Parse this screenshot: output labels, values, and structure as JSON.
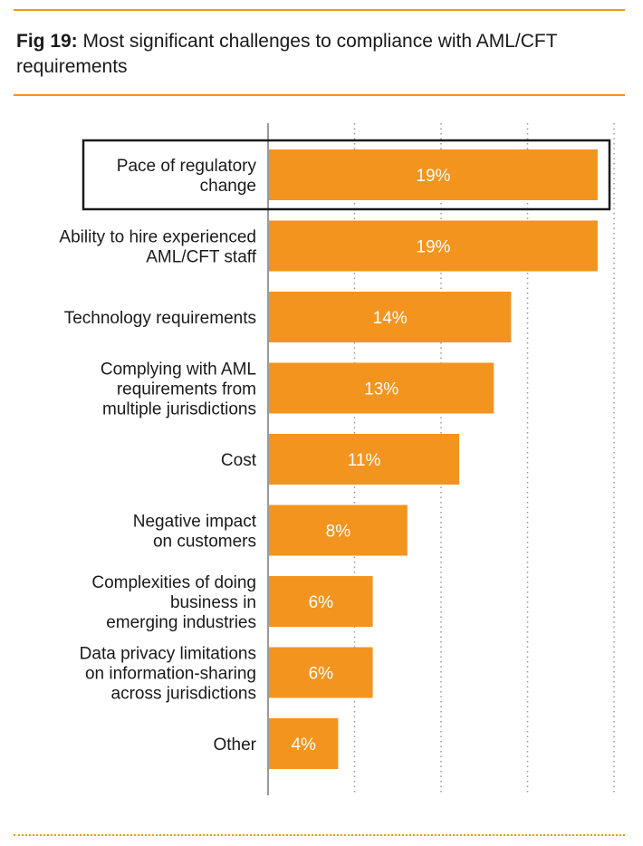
{
  "header": {
    "fig_label": "Fig 19:",
    "title_text": " Most significant challenges to compliance with AML/CFT requirements"
  },
  "colors": {
    "accent": "#f3941f",
    "bar": "#f3941f",
    "highlight_border": "#1a1a1a",
    "grid": "#9a9a9a",
    "axis": "#9a9a9a"
  },
  "chart_data": {
    "type": "bar",
    "orientation": "horizontal",
    "title": "Fig 19: Most significant challenges to compliance with AML/CFT requirements",
    "xlabel": "",
    "ylabel": "",
    "xlim": [
      0,
      20
    ],
    "grid": true,
    "categories": [
      [
        "Pace of regulatory",
        "change"
      ],
      [
        "Ability to hire experienced",
        "AML/CFT staff"
      ],
      [
        "Technology requirements"
      ],
      [
        "Complying with AML",
        "requirements from",
        "multiple jurisdictions"
      ],
      [
        "Cost"
      ],
      [
        "Negative impact",
        "on customers"
      ],
      [
        "Complexities of doing",
        "business in",
        "emerging industries"
      ],
      [
        "Data privacy limitations",
        "on information-sharing",
        "across jurisdictions"
      ],
      [
        "Other"
      ]
    ],
    "values": [
      19,
      19,
      14,
      13,
      11,
      8,
      6,
      6,
      4
    ],
    "value_labels": [
      "19%",
      "19%",
      "14%",
      "13%",
      "11%",
      "8%",
      "6%",
      "6%",
      "4%"
    ],
    "highlighted_index": 0
  }
}
